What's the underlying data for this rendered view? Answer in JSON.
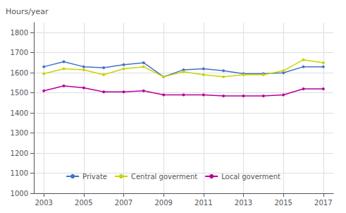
{
  "chart_data": {
    "type": "line",
    "ylabel": "Hours/year",
    "x": [
      2003,
      2004,
      2005,
      2006,
      2007,
      2008,
      2009,
      2010,
      2011,
      2012,
      2013,
      2014,
      2015,
      2016,
      2017
    ],
    "series": [
      {
        "name": "Private",
        "color": "#4472c4",
        "values": [
          1630,
          1655,
          1630,
          1625,
          1640,
          1650,
          1580,
          1615,
          1620,
          1610,
          1595,
          1595,
          1600,
          1630,
          1630
        ]
      },
      {
        "name": "Central goverment",
        "color": "#c8d400",
        "values": [
          1595,
          1620,
          1615,
          1590,
          1620,
          1630,
          1580,
          1605,
          1590,
          1580,
          1590,
          1590,
          1610,
          1665,
          1650
        ]
      },
      {
        "name": "Local goverment",
        "color": "#bb0099",
        "values": [
          1510,
          1535,
          1525,
          1505,
          1505,
          1510,
          1490,
          1490,
          1490,
          1485,
          1485,
          1485,
          1490,
          1520,
          1520
        ]
      }
    ],
    "xlim": [
      2002.5,
      2017.5
    ],
    "xticks": [
      2003,
      2005,
      2007,
      2009,
      2011,
      2013,
      2015,
      2017
    ],
    "ylim": [
      1000,
      1850
    ],
    "yticks": [
      1000,
      1100,
      1200,
      1300,
      1400,
      1500,
      1600,
      1700,
      1800
    ],
    "grid": true,
    "legend": "bottom",
    "marker": "circle"
  }
}
